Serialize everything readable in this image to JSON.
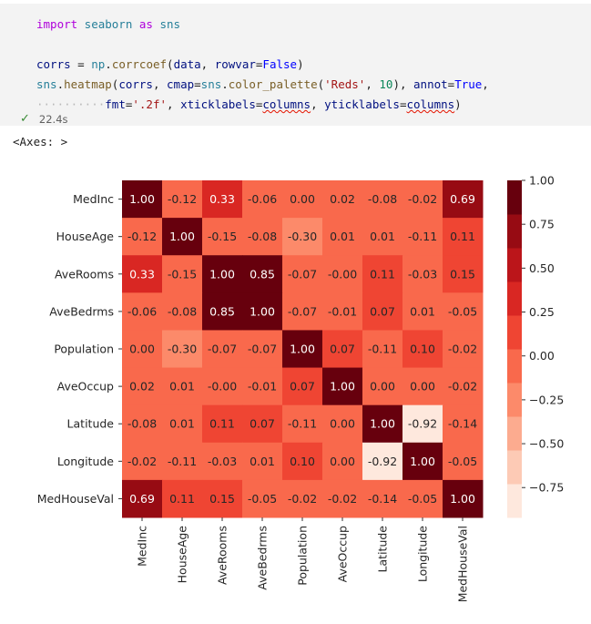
{
  "cell": {
    "code_lines": [
      [
        {
          "t": "import",
          "c": "kw"
        },
        {
          "t": " seaborn ",
          "c": "mod"
        },
        {
          "t": "as",
          "c": "kw"
        },
        {
          "t": " sns",
          "c": "mod"
        }
      ],
      [],
      [
        {
          "t": "corrs",
          "c": "var"
        },
        {
          "t": " = ",
          "c": ""
        },
        {
          "t": "np",
          "c": "mod"
        },
        {
          "t": ".",
          "c": ""
        },
        {
          "t": "corrcoef",
          "c": "fn"
        },
        {
          "t": "(",
          "c": ""
        },
        {
          "t": "data",
          "c": "var"
        },
        {
          "t": ", ",
          "c": ""
        },
        {
          "t": "rowvar",
          "c": "var"
        },
        {
          "t": "=",
          "c": ""
        },
        {
          "t": "False",
          "c": "bool"
        },
        {
          "t": ")",
          "c": ""
        }
      ],
      [
        {
          "t": "sns",
          "c": "mod"
        },
        {
          "t": ".",
          "c": ""
        },
        {
          "t": "heatmap",
          "c": "fn"
        },
        {
          "t": "(",
          "c": ""
        },
        {
          "t": "corrs",
          "c": "var"
        },
        {
          "t": ", ",
          "c": ""
        },
        {
          "t": "cmap",
          "c": "var"
        },
        {
          "t": "=",
          "c": ""
        },
        {
          "t": "sns",
          "c": "mod"
        },
        {
          "t": ".",
          "c": ""
        },
        {
          "t": "color_palette",
          "c": "fn"
        },
        {
          "t": "(",
          "c": ""
        },
        {
          "t": "'Reds'",
          "c": "str"
        },
        {
          "t": ", ",
          "c": ""
        },
        {
          "t": "10",
          "c": "num"
        },
        {
          "t": "), ",
          "c": ""
        },
        {
          "t": "annot",
          "c": "var"
        },
        {
          "t": "=",
          "c": ""
        },
        {
          "t": "True",
          "c": "bool"
        },
        {
          "t": ",",
          "c": ""
        }
      ],
      [
        {
          "t": "··········",
          "c": "indent-dots"
        },
        {
          "t": "fmt",
          "c": "var"
        },
        {
          "t": "=",
          "c": ""
        },
        {
          "t": "'.2f'",
          "c": "str"
        },
        {
          "t": ", ",
          "c": ""
        },
        {
          "t": "xticklabels",
          "c": "var"
        },
        {
          "t": "=",
          "c": ""
        },
        {
          "t": "columns",
          "c": "var squig"
        },
        {
          "t": ", ",
          "c": ""
        },
        {
          "t": "yticklabels",
          "c": "var"
        },
        {
          "t": "=",
          "c": ""
        },
        {
          "t": "columns",
          "c": "var squig"
        },
        {
          "t": ")",
          "c": ""
        }
      ]
    ],
    "exec_time": "22.4s",
    "output_text": "<Axes: >"
  },
  "chart_data": {
    "type": "heatmap",
    "labels": [
      "MedInc",
      "HouseAge",
      "AveRooms",
      "AveBedrms",
      "Population",
      "AveOccup",
      "Latitude",
      "Longitude",
      "MedHouseVal"
    ],
    "values": [
      [
        1.0,
        -0.12,
        0.33,
        -0.06,
        0.0,
        0.02,
        -0.08,
        -0.02,
        0.69
      ],
      [
        -0.12,
        1.0,
        -0.15,
        -0.08,
        -0.3,
        0.01,
        0.01,
        -0.11,
        0.11
      ],
      [
        0.33,
        -0.15,
        1.0,
        0.85,
        -0.07,
        -0.0,
        0.11,
        -0.03,
        0.15
      ],
      [
        -0.06,
        -0.08,
        0.85,
        1.0,
        -0.07,
        -0.01,
        0.07,
        0.01,
        -0.05
      ],
      [
        0.0,
        -0.3,
        -0.07,
        -0.07,
        1.0,
        0.07,
        -0.11,
        0.1,
        -0.02
      ],
      [
        0.02,
        0.01,
        -0.0,
        -0.01,
        0.07,
        1.0,
        0.0,
        0.0,
        -0.02
      ],
      [
        -0.08,
        0.01,
        0.11,
        0.07,
        -0.11,
        0.0,
        1.0,
        -0.92,
        -0.14
      ],
      [
        -0.02,
        -0.11,
        -0.03,
        0.01,
        0.1,
        0.0,
        -0.92,
        1.0,
        -0.05
      ],
      [
        0.69,
        0.11,
        0.15,
        -0.05,
        -0.02,
        -0.02,
        -0.14,
        -0.05,
        1.0
      ]
    ],
    "annotations": [
      [
        "1.00",
        "-0.12",
        "0.33",
        "-0.06",
        "0.00",
        "0.02",
        "-0.08",
        "-0.02",
        "0.69"
      ],
      [
        "-0.12",
        "1.00",
        "-0.15",
        "-0.08",
        "-0.30",
        "0.01",
        "0.01",
        "-0.11",
        "0.11"
      ],
      [
        "0.33",
        "-0.15",
        "1.00",
        "0.85",
        "-0.07",
        "-0.00",
        "0.11",
        "-0.03",
        "0.15"
      ],
      [
        "-0.06",
        "-0.08",
        "0.85",
        "1.00",
        "-0.07",
        "-0.01",
        "0.07",
        "0.01",
        "-0.05"
      ],
      [
        "0.00",
        "-0.30",
        "-0.07",
        "-0.07",
        "1.00",
        "0.07",
        "-0.11",
        "0.10",
        "-0.02"
      ],
      [
        "0.02",
        "0.01",
        "-0.00",
        "-0.01",
        "0.07",
        "1.00",
        "0.00",
        "0.00",
        "-0.02"
      ],
      [
        "-0.08",
        "0.01",
        "0.11",
        "0.07",
        "-0.11",
        "0.00",
        "1.00",
        "-0.92",
        "-0.14"
      ],
      [
        "-0.02",
        "-0.11",
        "-0.03",
        "0.01",
        "0.10",
        "0.00",
        "-0.92",
        "1.00",
        "-0.05"
      ],
      [
        "0.69",
        "0.11",
        "0.15",
        "-0.05",
        "-0.02",
        "-0.02",
        "-0.14",
        "-0.05",
        "1.00"
      ]
    ],
    "vmin": -0.92,
    "vmax": 1.0,
    "palette": [
      "#fee8dd",
      "#fdcab5",
      "#fcab8f",
      "#fc8a6a",
      "#f9694c",
      "#ef4533",
      "#d92723",
      "#bb151a",
      "#970b13",
      "#67000d"
    ],
    "colorbar_ticks": [
      1.0,
      0.75,
      0.5,
      0.25,
      0.0,
      -0.25,
      -0.5,
      -0.75
    ],
    "colorbar_tick_labels": [
      "1.00",
      "0.75",
      "0.50",
      "0.25",
      "0.00",
      "−0.25",
      "−0.50",
      "−0.75"
    ]
  }
}
